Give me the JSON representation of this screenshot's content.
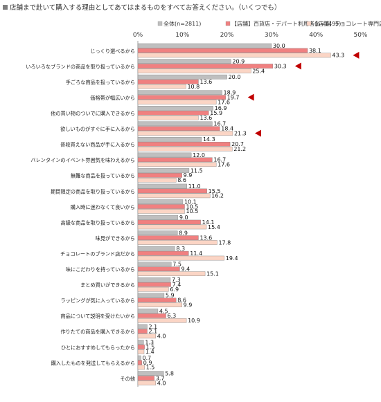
{
  "title": "店舗まで赴いて購入する理由としてあてはまるものをすべてお答えください。（いくつでも）",
  "chart_data": {
    "type": "bar",
    "orientation": "horizontal",
    "xlim": [
      0,
      50
    ],
    "x_ticks": [
      "0%",
      "10%",
      "20%",
      "30%",
      "40%",
      "50%"
    ],
    "legend_position": "top",
    "grid": false,
    "categories": [
      "じっくり選べるから",
      "いろいろなブランドの商品を取り扱っているから",
      "手ごろな商品を扱っているから",
      "価格帯が幅広いから",
      "他の買い物のついでに購入できるから",
      "欲しいものがすぐに手に入るから",
      "普段買えない商品が手に入るから",
      "バレンタインのイベント雰囲気を味わえるから",
      "無難な商品を扱っているから",
      "期間限定の商品を取り扱っているから",
      "購入時に迷わなくて良いから",
      "高級な商品を取り扱っているから",
      "味見ができるから",
      "チョコレートのブランド店だから",
      "味にこだわりを持っているから",
      "まとめ買いができるから",
      "ラッピングが気に入っているから",
      "商品について説明を受けたいから",
      "作りたての商品を購入できるから",
      "ひとにおすすめしてもらったから",
      "購入したものを発送してもらえるから",
      "その他"
    ],
    "series": [
      {
        "name": "全体(n=2811)",
        "color": "#bfbfbf",
        "values": [
          30.0,
          20.9,
          20.0,
          18.9,
          16.9,
          16.7,
          14.3,
          12.0,
          11.5,
          11.0,
          10.1,
          9.0,
          8.9,
          8.3,
          7.5,
          7.3,
          5.9,
          4.5,
          2.1,
          1.3,
          0.7,
          5.8
        ]
      },
      {
        "name": "【店舗】百貨店・デパート利用者(n=1495)",
        "color": "#f08080",
        "values": [
          38.1,
          30.3,
          13.6,
          19.7,
          15.9,
          18.4,
          20.7,
          16.7,
          9.9,
          15.5,
          10.5,
          14.1,
          13.6,
          11.4,
          9.4,
          7.4,
          8.6,
          6.3,
          2.1,
          1.5,
          0.9,
          3.7
        ]
      },
      {
        "name": "【店舗】チョコレート専門店(n=779)",
        "color": "#fbd5c5",
        "values": [
          43.3,
          25.4,
          10.8,
          17.6,
          13.6,
          21.3,
          21.2,
          17.6,
          8.6,
          16.2,
          10.5,
          15.4,
          17.8,
          19.4,
          15.1,
          6.9,
          9.9,
          10.9,
          4.0,
          1.4,
          1.5,
          4.0
        ]
      }
    ],
    "highlight_arrows": [
      {
        "category": "じっくり選べるから",
        "series": 2
      },
      {
        "category": "いろいろなブランドの商品を取り扱っているから",
        "series": 1
      },
      {
        "category": "価格帯が幅広いから",
        "series": 1
      },
      {
        "category": "欲しいものがすぐに手に入るから",
        "series": 2
      }
    ],
    "arrow_color": "#c00000"
  }
}
